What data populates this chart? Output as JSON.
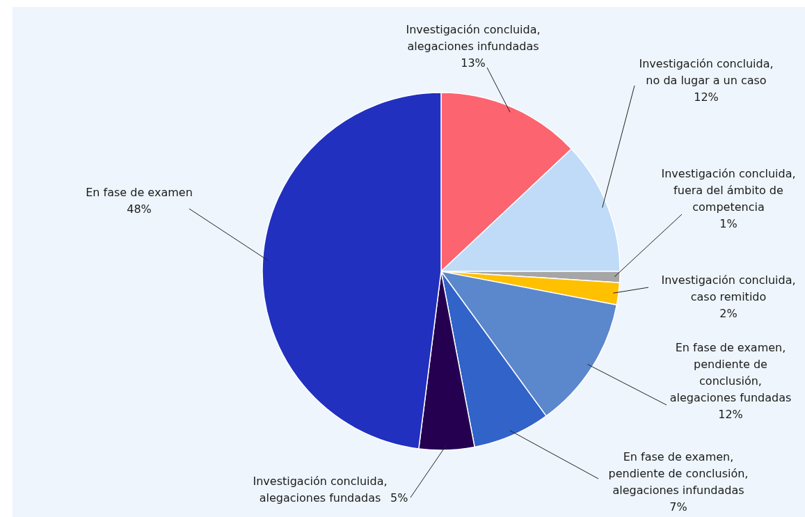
{
  "chart_data": {
    "type": "pie",
    "categories": [
      "Investigación concluida, alegaciones infundadas",
      "Investigación concluida, no da lugar a un caso",
      "Investigación concluida, fuera del ámbito de competencia",
      "Investigación concluida, caso remitido",
      "En fase de examen, pendiente de conclusión, alegaciones fundadas",
      "En fase de examen, pendiente de conclusión, alegaciones infundadas",
      "Investigación concluida, alegaciones fundadas",
      "En fase de examen"
    ],
    "values": [
      13,
      12,
      1,
      2,
      12,
      7,
      5,
      48
    ],
    "colors": [
      "#fc6470",
      "#bfdbf7",
      "#a6a6a6",
      "#ffc000",
      "#5b87cc",
      "#3163c9",
      "#250050",
      "#2130bf"
    ],
    "value_labels": [
      "13%",
      "12%",
      "1%",
      "2%",
      "12%",
      "7%",
      "5%",
      "48%"
    ]
  }
}
